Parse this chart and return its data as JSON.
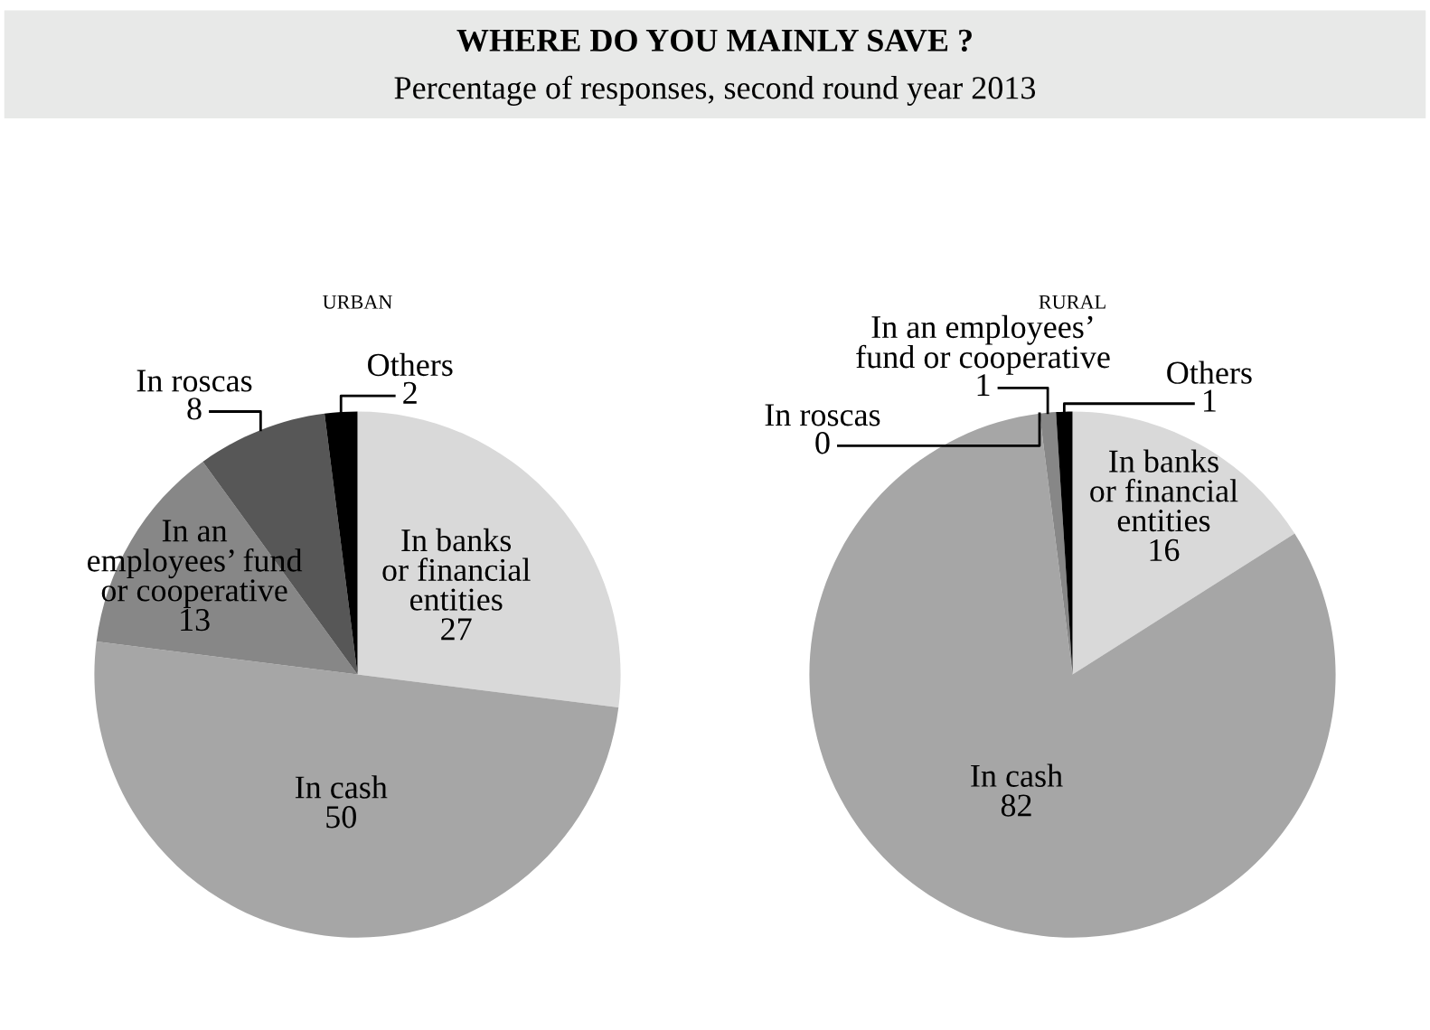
{
  "chart_data": [
    {
      "type": "other",
      "title": "WHERE DO YOU MAINLY SAVE ?",
      "subtitle": "Percentage of responses, second round year 2013"
    },
    {
      "type": "pie",
      "title": "URBAN",
      "data_labels": true,
      "categories": [
        "In banks\nor financial\nentities",
        "In cash",
        "In an\nemployees’ fund\nor cooperative",
        "In roscas",
        "Others"
      ],
      "values": [
        27,
        50,
        13,
        8,
        2
      ],
      "colors": [
        "#d9d9d9",
        "#a6a6a6",
        "#878787",
        "#575757",
        "#000000"
      ]
    },
    {
      "type": "pie",
      "title": "RURAL",
      "value_labels": [
        "16",
        "82",
        "0",
        "1",
        "1"
      ],
      "categories": [
        "In banks\nor financial\nentities",
        "In cash",
        "In roscas",
        "In an employees’\nfund or cooperative",
        "Others"
      ],
      "values": [
        16,
        82,
        0,
        1,
        1
      ],
      "colors": [
        "#d9d9d9",
        "#a6a6a6",
        "#575757",
        "#878787",
        "#000000"
      ]
    }
  ]
}
